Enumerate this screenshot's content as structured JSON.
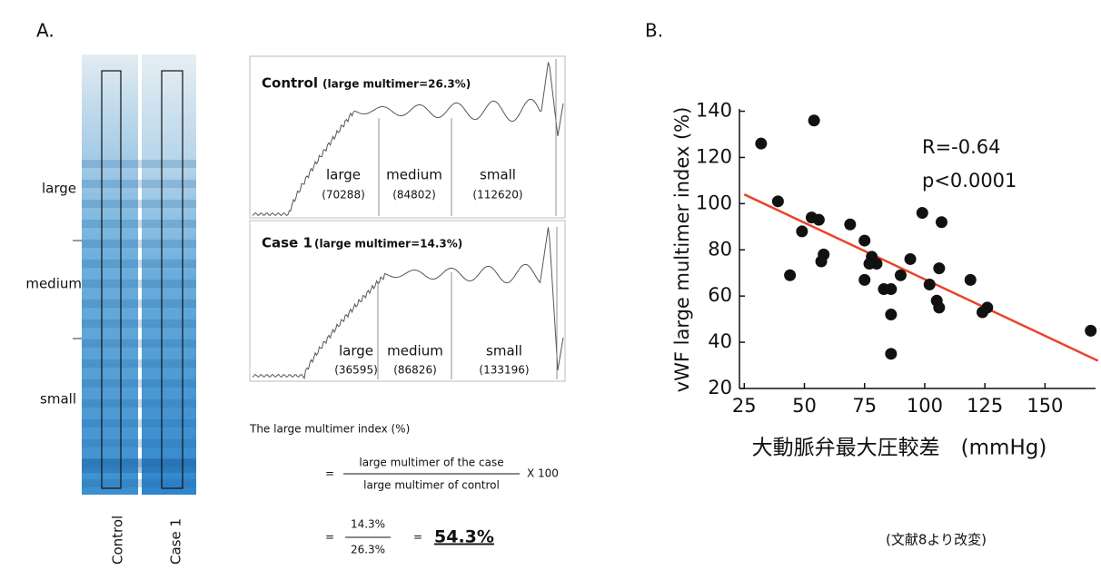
{
  "panel_a": {
    "label": "A.",
    "bands": [
      "large",
      "medium",
      "small"
    ],
    "lanes": [
      "Control",
      "Case 1"
    ],
    "traces": [
      {
        "title": "Control",
        "note": "(large multimer=26.3%)",
        "regions": [
          "large",
          "medium",
          "small"
        ],
        "counts": [
          "(70288)",
          "(84802)",
          "(112620)"
        ]
      },
      {
        "title": "Case 1",
        "note": "(large multimer=14.3%)",
        "regions": [
          "large",
          "medium",
          "small"
        ],
        "counts": [
          "(36595)",
          "(86826)",
          "(133196)"
        ]
      }
    ],
    "formula": {
      "heading": "The large multimer index (%)",
      "eq1": "=",
      "numerator": "large multimer of the case",
      "denominator": "large multimer   of control",
      "factor": "X 100",
      "eq2": "=",
      "num2": "14.3%",
      "den2": "26.3%",
      "eq3": "=",
      "result": "54.3%"
    }
  },
  "panel_b": {
    "label": "B.",
    "source": "(文献8より改変)"
  },
  "chart_data": {
    "type": "scatter",
    "x_label": "大動脈弁最大圧較差　(mmHg)",
    "y_label": "vWF  large multimer index (%)",
    "annotations": [
      "R=-0.64",
      "p<0.0001"
    ],
    "x": [
      32,
      54,
      39,
      49,
      44,
      53,
      56,
      58,
      57,
      69,
      75,
      78,
      77,
      80,
      75,
      83,
      86,
      86,
      86,
      90,
      94,
      99,
      102,
      106,
      105,
      106,
      107,
      119,
      124,
      126,
      169
    ],
    "values": [
      126,
      136,
      101,
      88,
      69,
      94,
      93,
      78,
      75,
      91,
      84,
      77,
      74,
      74,
      67,
      63,
      63,
      52,
      35,
      69,
      76,
      96,
      65,
      72,
      58,
      55,
      92,
      67,
      53,
      55,
      45
    ],
    "color": "#111111",
    "fit_line": {
      "x": [
        25,
        172
      ],
      "values": [
        104,
        32
      ],
      "color": "#e8452c"
    },
    "xlim": [
      23,
      171
    ],
    "ylim": [
      20,
      141
    ],
    "xticks": [
      25,
      50,
      75,
      100,
      125,
      150
    ],
    "yticks": [
      20,
      40,
      60,
      80,
      100,
      120,
      140
    ]
  }
}
